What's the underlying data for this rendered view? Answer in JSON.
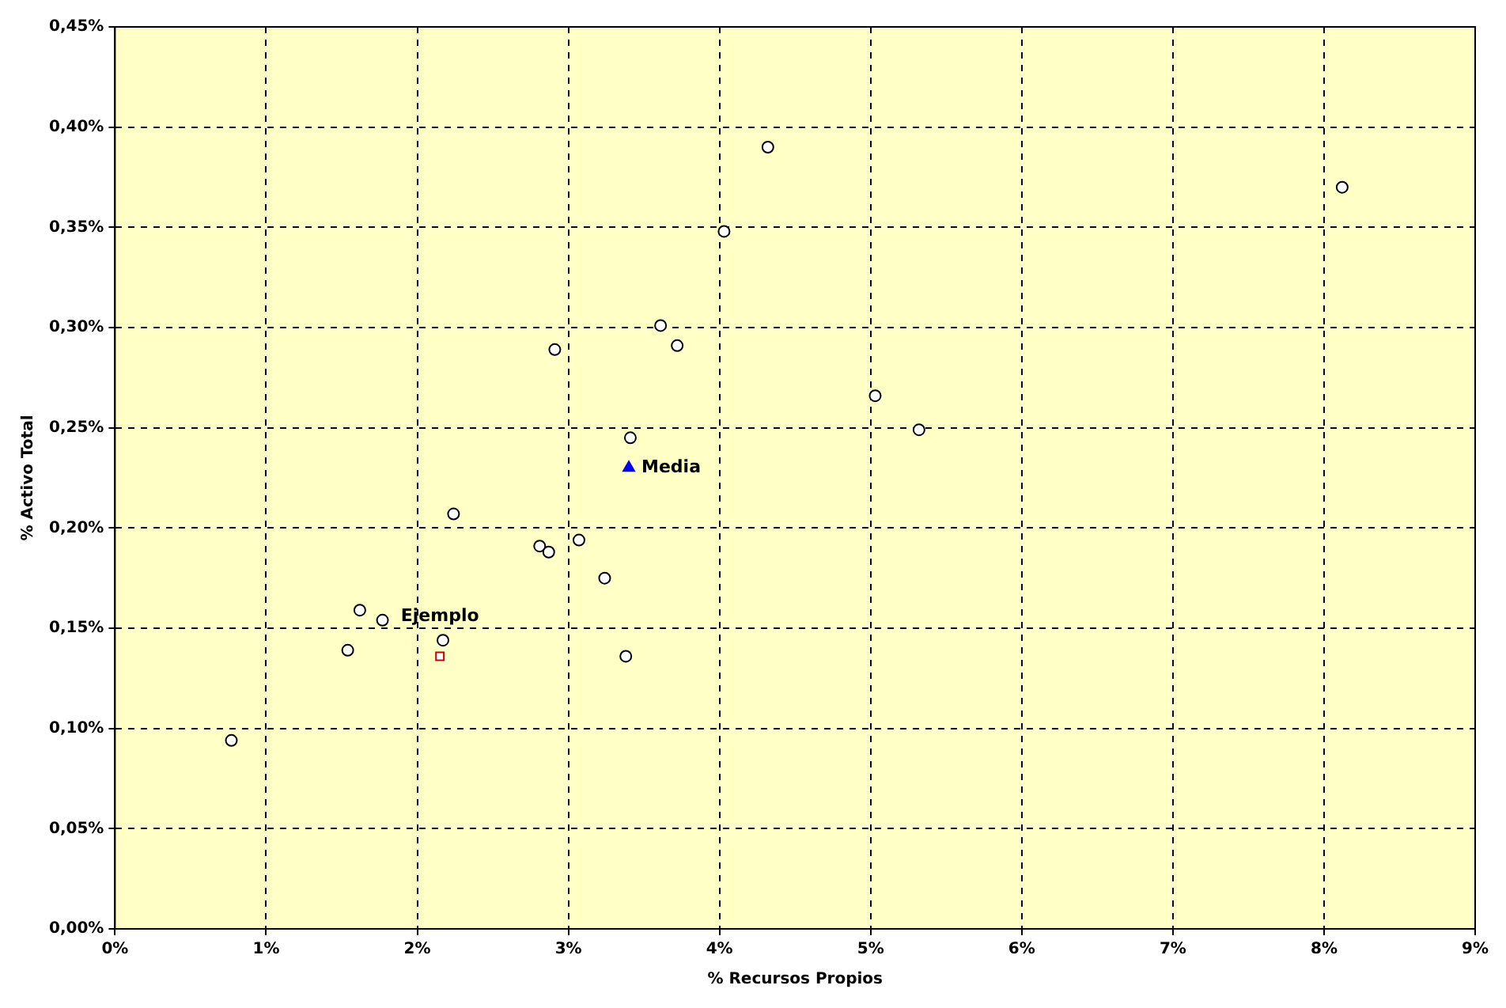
{
  "chart_data": {
    "type": "scatter",
    "xlabel": "% Recursos Propios",
    "ylabel": "% Activo Total",
    "xlim": [
      0,
      9
    ],
    "xticks": [
      {
        "value": 0,
        "label": "0%"
      },
      {
        "value": 1,
        "label": "1%"
      },
      {
        "value": 2,
        "label": "2%"
      },
      {
        "value": 3,
        "label": "3%"
      },
      {
        "value": 4,
        "label": "4%"
      },
      {
        "value": 5,
        "label": "5%"
      },
      {
        "value": 6,
        "label": "6%"
      },
      {
        "value": 7,
        "label": "7%"
      },
      {
        "value": 8,
        "label": "8%"
      },
      {
        "value": 9,
        "label": "9%"
      }
    ],
    "ylim": [
      0,
      0.45
    ],
    "yticks": [
      {
        "value": 0,
        "label": "0,00%"
      },
      {
        "value": 0.05,
        "label": "0,05%"
      },
      {
        "value": 0.1,
        "label": "0,10%"
      },
      {
        "value": 0.15,
        "label": "0,15%"
      },
      {
        "value": 0.2,
        "label": "0,20%"
      },
      {
        "value": 0.25,
        "label": "0,25%"
      },
      {
        "value": 0.3,
        "label": "0,30%"
      },
      {
        "value": 0.35,
        "label": "0,35%"
      },
      {
        "value": 0.4,
        "label": "0,40%"
      },
      {
        "value": 0.45,
        "label": "0,45%"
      }
    ],
    "grid": true,
    "legend": false,
    "line_style": "dashed",
    "series": [
      {
        "color": "#000000",
        "marker": "circle",
        "x": [
          0.77,
          1.54,
          1.62,
          1.77,
          2.17,
          2.24,
          2.81,
          2.87,
          2.91,
          3.07,
          3.24,
          3.38,
          3.41,
          3.61,
          3.72,
          4.03,
          4.32,
          5.03,
          5.32,
          8.12
        ],
        "values": [
          0.094,
          0.139,
          0.159,
          0.154,
          0.144,
          0.207,
          0.191,
          0.188,
          0.289,
          0.194,
          0.175,
          0.136,
          0.245,
          0.301,
          0.291,
          0.348,
          0.39,
          0.266,
          0.249,
          0.37
        ]
      },
      {
        "name": "Ejemplo",
        "color": "#cc0000",
        "marker": "square",
        "x": [
          2.15
        ],
        "values": [
          0.136
        ]
      },
      {
        "name": "Media",
        "color": "#0000ff",
        "marker": "triangle",
        "x": [
          3.4
        ],
        "values": [
          0.23
        ]
      }
    ]
  }
}
